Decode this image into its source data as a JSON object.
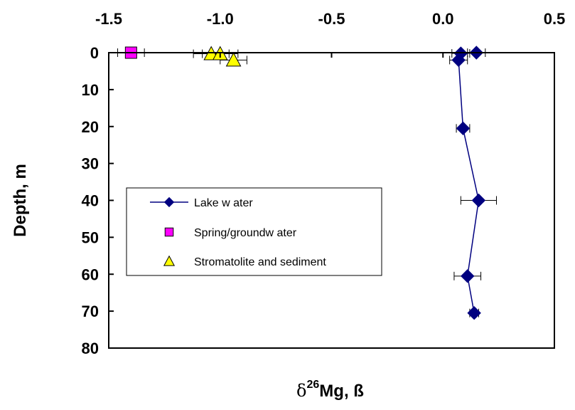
{
  "chart_data": {
    "type": "scatter",
    "xlabel": {
      "prefix": "δ",
      "superscript": "26",
      "main": "Mg, ß"
    },
    "ylabel": "Depth, m",
    "xlim": [
      -1.5,
      0.5
    ],
    "ylim": [
      0,
      80
    ],
    "y_inverted": true,
    "x_axis_position": "top",
    "grid": false,
    "legend_position": "center-left",
    "x_ticks": [
      "-1.5",
      "-1.0",
      "-0.5",
      "0.0",
      "0.5"
    ],
    "y_ticks": [
      "0",
      "10",
      "20",
      "30",
      "40",
      "50",
      "60",
      "70",
      "80"
    ],
    "series": [
      {
        "name": "Lake w ater",
        "marker": "diamond",
        "color": "#000080",
        "line": true,
        "points": [
          {
            "x": 0.15,
            "y": 0,
            "err": 0.04
          },
          {
            "x": 0.08,
            "y": 0.2,
            "err": 0.04
          },
          {
            "x": 0.07,
            "y": 2,
            "err": 0.04
          },
          {
            "x": 0.09,
            "y": 20.5,
            "err": 0.03
          },
          {
            "x": 0.16,
            "y": 40,
            "err": 0.08
          },
          {
            "x": 0.11,
            "y": 60.5,
            "err": 0.06
          },
          {
            "x": 0.14,
            "y": 70.5,
            "err": 0.02
          }
        ]
      },
      {
        "name": "Spring/groundw ater",
        "marker": "square",
        "color": "#FF00FF",
        "line": false,
        "points": [
          {
            "x": -1.4,
            "y": 0,
            "err": 0.06
          }
        ]
      },
      {
        "name": "Stromatolite and sediment",
        "marker": "triangle",
        "color": "#FFFF00",
        "line": false,
        "points": [
          {
            "x": -1.04,
            "y": 0.3,
            "err": 0.08
          },
          {
            "x": -1.0,
            "y": 0.3,
            "err": 0.08
          },
          {
            "x": -0.94,
            "y": 2,
            "err": 0.06
          }
        ]
      }
    ]
  }
}
